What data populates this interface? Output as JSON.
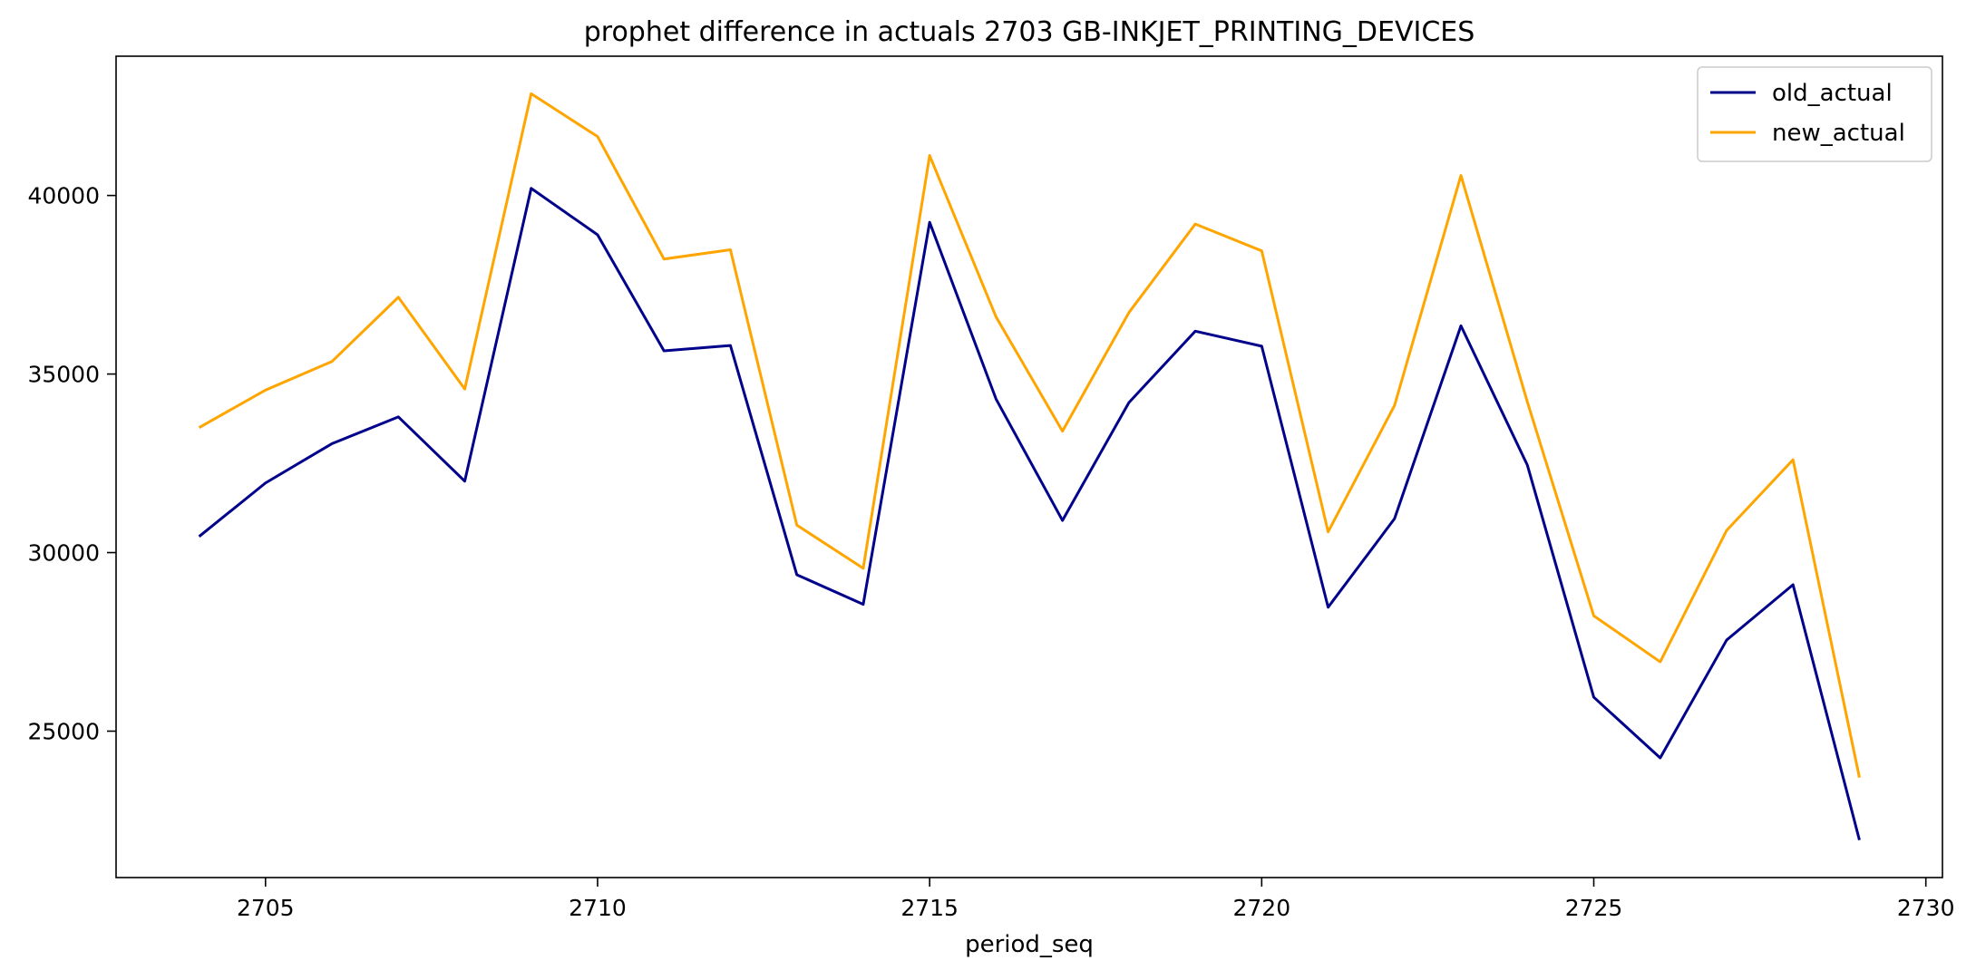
{
  "chart_data": {
    "type": "line",
    "title": "prophet difference in actuals 2703 GB-INKJET_PRINTING_DEVICES",
    "xlabel": "period_seq",
    "ylabel": "",
    "x": [
      2704,
      2705,
      2706,
      2707,
      2708,
      2709,
      2710,
      2711,
      2712,
      2713,
      2714,
      2715,
      2716,
      2717,
      2718,
      2719,
      2720,
      2721,
      2722,
      2723,
      2724,
      2725,
      2726,
      2727,
      2728,
      2729
    ],
    "series": [
      {
        "name": "old_actual",
        "color": "#00008b",
        "values": [
          30450,
          31950,
          33050,
          33800,
          32000,
          40200,
          38900,
          35650,
          35800,
          29380,
          28550,
          39250,
          34300,
          30900,
          34200,
          36200,
          35780,
          28470,
          30950,
          36350,
          32450,
          25950,
          24250,
          27550,
          29100,
          21950
        ]
      },
      {
        "name": "new_actual",
        "color": "#ffa500",
        "values": [
          33500,
          34550,
          35350,
          37150,
          34580,
          42850,
          41650,
          38220,
          38480,
          30770,
          29560,
          41120,
          36600,
          33400,
          36720,
          39200,
          38450,
          30580,
          34120,
          40560,
          34220,
          28230,
          26940,
          30620,
          32600,
          23700
        ]
      }
    ],
    "xticks": [
      2705,
      2710,
      2715,
      2720,
      2725,
      2730
    ],
    "yticks": [
      25000,
      30000,
      35000,
      40000
    ],
    "xlim": [
      2702.75,
      2730.25
    ],
    "ylim": [
      20900,
      43900
    ],
    "grid": false,
    "legend_position": "top-right"
  }
}
